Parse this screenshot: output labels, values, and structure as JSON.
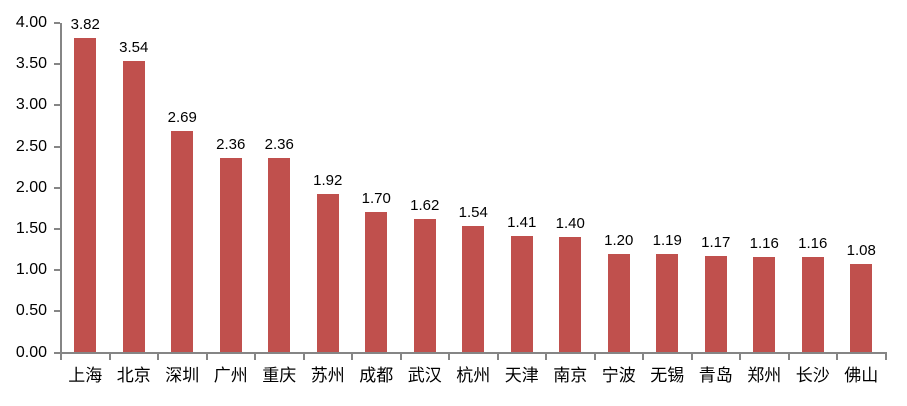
{
  "chart_data": {
    "type": "bar",
    "title": "",
    "xlabel": "",
    "ylabel": "",
    "categories": [
      "上海",
      "北京",
      "深圳",
      "广州",
      "重庆",
      "苏州",
      "成都",
      "武汉",
      "杭州",
      "天津",
      "南京",
      "宁波",
      "无锡",
      "青岛",
      "郑州",
      "长沙",
      "佛山"
    ],
    "values": [
      3.82,
      3.54,
      2.69,
      2.36,
      2.36,
      1.92,
      1.7,
      1.62,
      1.54,
      1.41,
      1.4,
      1.2,
      1.19,
      1.17,
      1.16,
      1.16,
      1.08
    ],
    "data_labels": [
      "3.82",
      "3.54",
      "2.69",
      "2.36",
      "2.36",
      "1.92",
      "1.70",
      "1.62",
      "1.54",
      "1.41",
      "1.40",
      "1.20",
      "1.19",
      "1.17",
      "1.16",
      "1.16",
      "1.08"
    ],
    "y_tick_labels": [
      "4.00",
      "3.50",
      "3.00",
      "2.50",
      "2.00",
      "1.50",
      "1.00",
      "0.50",
      "0.00"
    ],
    "y_tick_values": [
      4.0,
      3.5,
      3.0,
      2.5,
      2.0,
      1.5,
      1.0,
      0.5,
      0.0
    ],
    "ylim": [
      0,
      4
    ],
    "grid": false,
    "legend": false,
    "data_labels_position": "outside-end",
    "colors": {
      "bar": "#C0504D",
      "axis": "#858585",
      "text": "#000000",
      "background": "#FFFFFF"
    }
  }
}
